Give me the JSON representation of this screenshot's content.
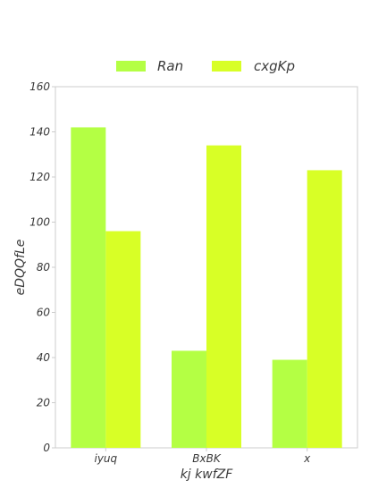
{
  "chart_data": {
    "type": "bar",
    "title": "",
    "xlabel": "kj kwfZF",
    "ylabel": "eDQQfLe",
    "categories": [
      "iyuq",
      "BxBK",
      "x"
    ],
    "series": [
      {
        "name": "Ran",
        "values": [
          142,
          43,
          39
        ],
        "color": "#b4ff44"
      },
      {
        "name": "cxgKp",
        "values": [
          96,
          134,
          123
        ],
        "color": "#d8ff26"
      }
    ],
    "ylim": [
      0,
      160
    ],
    "yticks": [
      0,
      20,
      40,
      60,
      80,
      100,
      120,
      140,
      160
    ],
    "grid": false,
    "legend_position": "top-center",
    "frame_color": "#cccccc"
  }
}
